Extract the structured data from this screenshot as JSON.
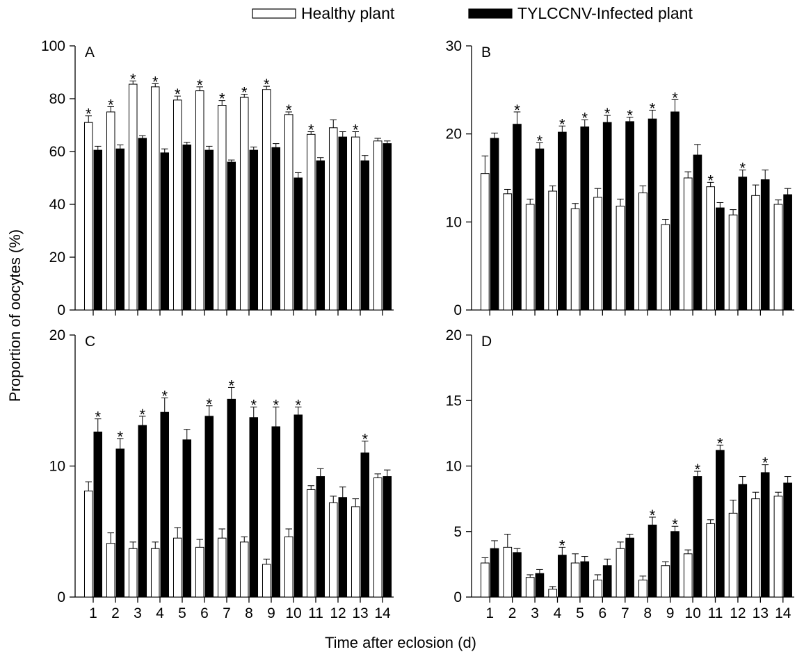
{
  "legend": {
    "healthy_label": "Healthy plant",
    "infected_label": "TYLCCNV-Infected plant"
  },
  "ylabel": "Proportion of oocytes (%)",
  "xlabel": "Time after eclosion (d)",
  "colors": {
    "healthy_fill": "#ffffff",
    "infected_fill": "#000000",
    "stroke": "#000000"
  },
  "chart_data": [
    {
      "type": "bar",
      "panel": "A",
      "categories": [
        "1",
        "2",
        "3",
        "4",
        "5",
        "6",
        "7",
        "8",
        "9",
        "10",
        "11",
        "12",
        "13",
        "14"
      ],
      "ylim": [
        0,
        100
      ],
      "yticks": [
        "0",
        "20",
        "40",
        "60",
        "80",
        "100"
      ],
      "series": [
        {
          "name": "Healthy plant",
          "values": [
            71,
            75,
            85.5,
            84.5,
            79.5,
            83,
            77.5,
            80.5,
            83.5,
            74,
            66.5,
            69,
            65.5,
            64
          ],
          "errors": [
            2.5,
            2,
            1.2,
            1.2,
            1.5,
            1.5,
            1.8,
            1.2,
            1.2,
            1,
            1,
            3,
            2,
            1
          ]
        },
        {
          "name": "TYLCCNV-Infected plant",
          "values": [
            60.5,
            61,
            65,
            59.5,
            62.5,
            60.5,
            56,
            60.5,
            61.5,
            50,
            56.5,
            65.5,
            56.5,
            63
          ],
          "errors": [
            1.5,
            1.5,
            1,
            1.5,
            1,
            1.5,
            0.8,
            1.2,
            1.5,
            2,
            1.2,
            2,
            2,
            1
          ]
        }
      ],
      "significant": [
        1,
        2,
        3,
        4,
        5,
        6,
        7,
        8,
        9,
        10,
        11,
        13
      ]
    },
    {
      "type": "bar",
      "panel": "B",
      "categories": [
        "1",
        "2",
        "3",
        "4",
        "5",
        "6",
        "7",
        "8",
        "9",
        "10",
        "11",
        "12",
        "13",
        "14"
      ],
      "ylim": [
        0,
        30
      ],
      "yticks": [
        "0",
        "10",
        "20",
        "30"
      ],
      "series": [
        {
          "name": "Healthy plant",
          "values": [
            15.5,
            13.2,
            12,
            13.5,
            11.5,
            12.8,
            11.8,
            13.3,
            9.7,
            15,
            14,
            10.8,
            13,
            12
          ],
          "errors": [
            2,
            0.5,
            0.6,
            0.6,
            0.6,
            1,
            0.8,
            0.8,
            0.6,
            0.7,
            0.5,
            0.6,
            1.2,
            0.5
          ]
        },
        {
          "name": "TYLCCNV-Infected plant",
          "values": [
            19.5,
            21.1,
            18.3,
            20.2,
            20.8,
            21.3,
            21.4,
            21.7,
            22.5,
            17.6,
            11.6,
            15.1,
            14.8,
            13.1
          ],
          "errors": [
            0.6,
            1.4,
            0.7,
            0.7,
            0.8,
            0.8,
            0.5,
            1,
            1.4,
            1.2,
            0.6,
            0.8,
            1.1,
            0.7
          ]
        }
      ],
      "significant": [
        2,
        3,
        4,
        5,
        6,
        7,
        8,
        9,
        11,
        12
      ]
    },
    {
      "type": "bar",
      "panel": "C",
      "categories": [
        "1",
        "2",
        "3",
        "4",
        "5",
        "6",
        "7",
        "8",
        "9",
        "10",
        "11",
        "12",
        "13",
        "14"
      ],
      "ylim": [
        0,
        20
      ],
      "yticks": [
        "0",
        "10",
        "20"
      ],
      "series": [
        {
          "name": "Healthy plant",
          "values": [
            8.1,
            4.1,
            3.7,
            3.7,
            4.5,
            3.8,
            4.5,
            4.2,
            2.5,
            4.6,
            8.2,
            7.2,
            6.9,
            9.1
          ],
          "errors": [
            0.7,
            0.8,
            0.5,
            0.5,
            0.8,
            0.6,
            0.7,
            0.4,
            0.4,
            0.6,
            0.3,
            0.5,
            0.6,
            0.3
          ]
        },
        {
          "name": "TYLCCNV-Infected plant",
          "values": [
            12.6,
            11.3,
            13.1,
            14.1,
            12,
            13.8,
            15.1,
            13.7,
            13,
            13.9,
            9.2,
            7.6,
            11,
            9.2
          ],
          "errors": [
            1,
            0.8,
            0.7,
            1.1,
            0.8,
            0.8,
            0.9,
            0.8,
            1.5,
            0.6,
            0.6,
            0.8,
            0.9,
            0.5
          ]
        }
      ],
      "significant": [
        1,
        2,
        3,
        4,
        6,
        7,
        8,
        9,
        10,
        13
      ]
    },
    {
      "type": "bar",
      "panel": "D",
      "categories": [
        "1",
        "2",
        "3",
        "4",
        "5",
        "6",
        "7",
        "8",
        "9",
        "10",
        "11",
        "12",
        "13",
        "14"
      ],
      "ylim": [
        0,
        20
      ],
      "yticks": [
        "0",
        "5",
        "10",
        "15",
        "20"
      ],
      "series": [
        {
          "name": "Healthy plant",
          "values": [
            2.6,
            3.8,
            1.5,
            0.6,
            2.6,
            1.3,
            3.7,
            1.3,
            2.4,
            3.3,
            5.6,
            6.4,
            7.5,
            7.7
          ],
          "errors": [
            0.4,
            1,
            0.2,
            0.2,
            0.7,
            0.4,
            0.5,
            0.3,
            0.3,
            0.3,
            0.3,
            1,
            0.5,
            0.3
          ]
        },
        {
          "name": "TYLCCNV-Infected plant",
          "values": [
            3.7,
            3.4,
            1.8,
            3.2,
            2.7,
            2.4,
            4.5,
            5.5,
            5,
            9.2,
            11.2,
            8.6,
            9.5,
            8.7
          ],
          "errors": [
            0.6,
            0.3,
            0.3,
            0.6,
            0.4,
            0.5,
            0.3,
            0.6,
            0.4,
            0.4,
            0.4,
            0.6,
            0.6,
            0.5
          ]
        }
      ],
      "significant": [
        4,
        8,
        9,
        10,
        11,
        13
      ]
    }
  ]
}
